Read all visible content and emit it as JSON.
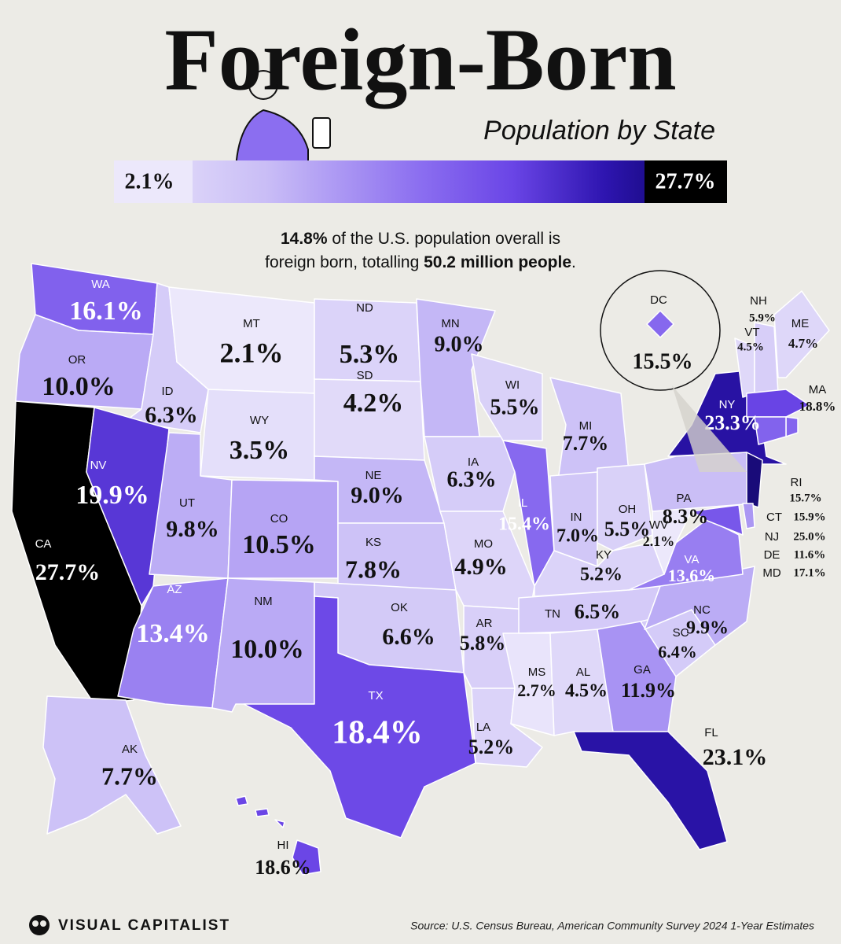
{
  "title": "Foreign-Born",
  "subtitle": "Population by State",
  "legend": {
    "min": {
      "value": 2.1,
      "label": "2.1%"
    },
    "max": {
      "value": 27.7,
      "label": "27.7%"
    }
  },
  "intro": [
    [
      "14.8%",
      " of the U.S. population overall is"
    ],
    [
      "foreign born, totalling ",
      "50.2 million people",
      "."
    ]
  ],
  "states": [
    {
      "abbr": "WA",
      "value": 16.1,
      "label": "16.1%"
    },
    {
      "abbr": "OR",
      "value": 10.0,
      "label": "10.0%"
    },
    {
      "abbr": "CA",
      "value": 27.7,
      "label": "27.7%"
    },
    {
      "abbr": "ID",
      "value": 6.3,
      "label": "6.3%"
    },
    {
      "abbr": "NV",
      "value": 19.9,
      "label": "19.9%"
    },
    {
      "abbr": "MT",
      "value": 2.1,
      "label": "2.1%"
    },
    {
      "abbr": "WY",
      "value": 3.5,
      "label": "3.5%"
    },
    {
      "abbr": "UT",
      "value": 9.8,
      "label": "9.8%"
    },
    {
      "abbr": "AZ",
      "value": 13.4,
      "label": "13.4%"
    },
    {
      "abbr": "CO",
      "value": 10.5,
      "label": "10.5%"
    },
    {
      "abbr": "NM",
      "value": 10.0,
      "label": "10.0%"
    },
    {
      "abbr": "ND",
      "value": 5.3,
      "label": "5.3%"
    },
    {
      "abbr": "SD",
      "value": 4.2,
      "label": "4.2%"
    },
    {
      "abbr": "NE",
      "value": 9.0,
      "label": "9.0%"
    },
    {
      "abbr": "KS",
      "value": 7.8,
      "label": "7.8%"
    },
    {
      "abbr": "OK",
      "value": 6.6,
      "label": "6.6%"
    },
    {
      "abbr": "TX",
      "value": 18.4,
      "label": "18.4%"
    },
    {
      "abbr": "MN",
      "value": 9.0,
      "label": "9.0%"
    },
    {
      "abbr": "IA",
      "value": 6.3,
      "label": "6.3%"
    },
    {
      "abbr": "MO",
      "value": 4.9,
      "label": "4.9%"
    },
    {
      "abbr": "AR",
      "value": 5.8,
      "label": "5.8%"
    },
    {
      "abbr": "LA",
      "value": 5.2,
      "label": "5.2%"
    },
    {
      "abbr": "WI",
      "value": 5.5,
      "label": "5.5%"
    },
    {
      "abbr": "IL",
      "value": 15.4,
      "label": "15.4%"
    },
    {
      "abbr": "MI",
      "value": 7.7,
      "label": "7.7%"
    },
    {
      "abbr": "IN",
      "value": 7.0,
      "label": "7.0%"
    },
    {
      "abbr": "OH",
      "value": 5.5,
      "label": "5.5%"
    },
    {
      "abbr": "KY",
      "value": 5.2,
      "label": "5.2%"
    },
    {
      "abbr": "TN",
      "value": 6.5,
      "label": "6.5%"
    },
    {
      "abbr": "MS",
      "value": 2.7,
      "label": "2.7%"
    },
    {
      "abbr": "AL",
      "value": 4.5,
      "label": "4.5%"
    },
    {
      "abbr": "GA",
      "value": 11.9,
      "label": "11.9%"
    },
    {
      "abbr": "FL",
      "value": 23.1,
      "label": "23.1%"
    },
    {
      "abbr": "SC",
      "value": 6.4,
      "label": "6.4%"
    },
    {
      "abbr": "NC",
      "value": 9.9,
      "label": "9.9%"
    },
    {
      "abbr": "VA",
      "value": 13.6,
      "label": "13.6%"
    },
    {
      "abbr": "WV",
      "value": 2.1,
      "label": "2.1%"
    },
    {
      "abbr": "PA",
      "value": 8.3,
      "label": "8.3%"
    },
    {
      "abbr": "NY",
      "value": 23.3,
      "label": "23.3%"
    },
    {
      "abbr": "VT",
      "value": 4.5,
      "label": "4.5%"
    },
    {
      "abbr": "NH",
      "value": 5.9,
      "label": "5.9%"
    },
    {
      "abbr": "ME",
      "value": 4.7,
      "label": "4.7%"
    },
    {
      "abbr": "MA",
      "value": 18.8,
      "label": "18.8%"
    },
    {
      "abbr": "RI",
      "value": 15.7,
      "label": "15.7%"
    },
    {
      "abbr": "CT",
      "value": 15.9,
      "label": "15.9%"
    },
    {
      "abbr": "NJ",
      "value": 25.0,
      "label": "25.0%"
    },
    {
      "abbr": "DE",
      "value": 11.6,
      "label": "11.6%"
    },
    {
      "abbr": "MD",
      "value": 17.1,
      "label": "17.1%"
    },
    {
      "abbr": "DC",
      "value": 15.5,
      "label": "15.5%"
    },
    {
      "abbr": "AK",
      "value": 7.7,
      "label": "7.7%"
    },
    {
      "abbr": "HI",
      "value": 18.6,
      "label": "18.6%"
    }
  ],
  "footer": {
    "brand": "VISUAL CAPITALIST",
    "source": "Source: U.S. Census Bureau, American Community Survey 2024 1-Year Estimates"
  }
}
